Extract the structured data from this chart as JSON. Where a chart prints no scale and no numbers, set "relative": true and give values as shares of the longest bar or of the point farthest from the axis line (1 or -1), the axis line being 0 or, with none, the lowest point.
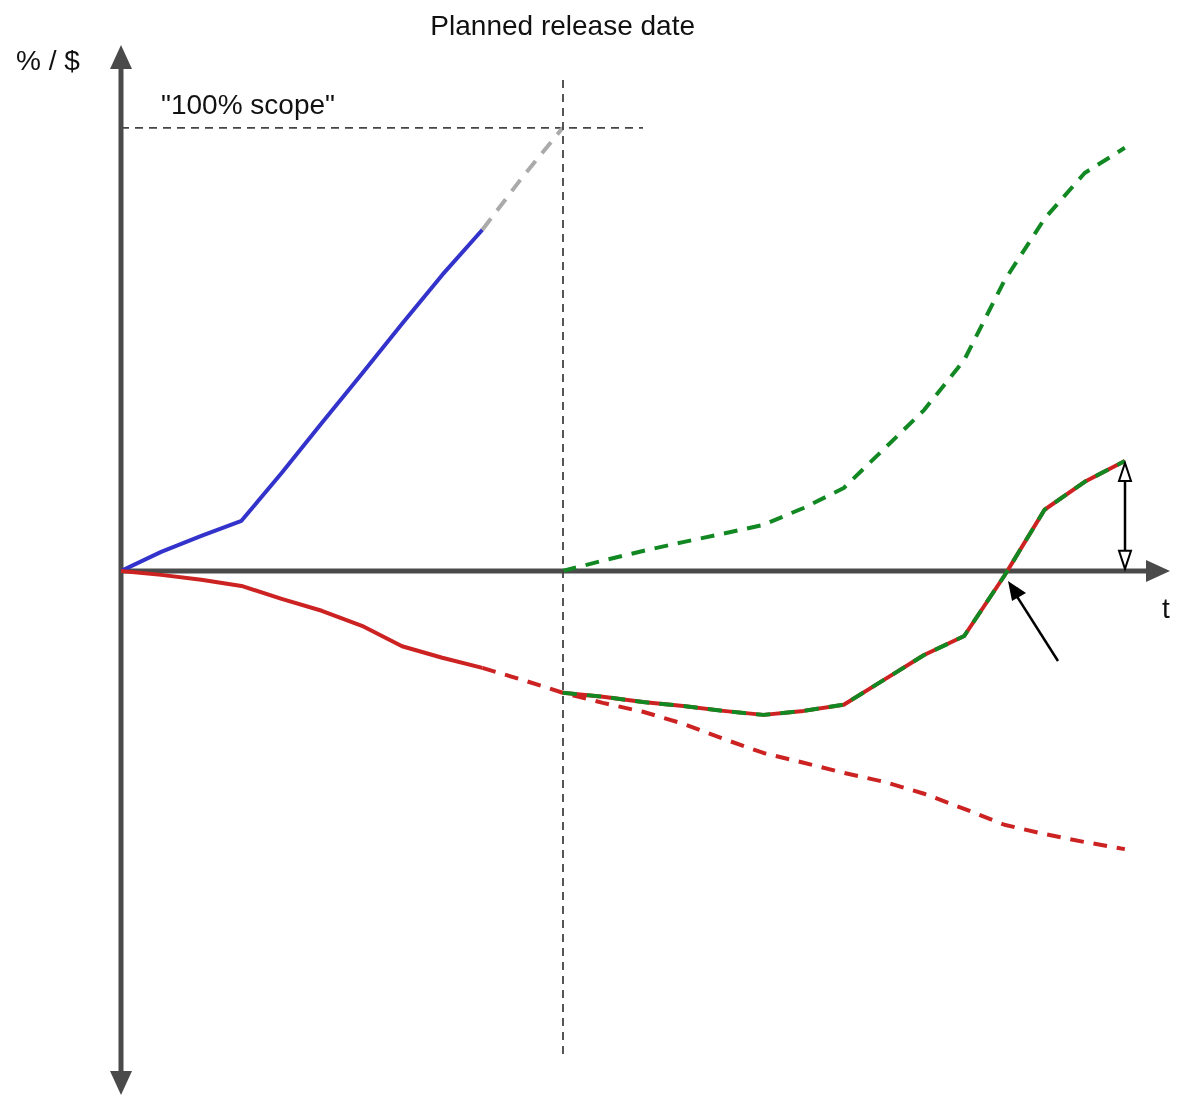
{
  "chart_data": {
    "type": "line",
    "relative": true,
    "xlabel": "t",
    "ylabel": "% / $",
    "legend": false,
    "marker": "none",
    "categories": [
      null,
      null,
      null,
      null,
      null,
      null,
      null,
      null,
      null,
      null,
      null,
      null,
      null,
      null,
      null,
      null,
      null,
      null,
      null,
      null,
      null,
      null,
      null,
      null,
      null,
      null
    ],
    "series": [
      {
        "color": "#3333cc",
        "line_style": "solid",
        "values": [
          0,
          0.043,
          0.079,
          0.113,
          0.221,
          0.334,
          0.445,
          0.558,
          0.668,
          0.77,
          null,
          null,
          null,
          null,
          null,
          null,
          null,
          null,
          null,
          null,
          null,
          null,
          null,
          null,
          null,
          null
        ]
      },
      {
        "color": "#aaaaaa",
        "line_style": "dashed",
        "values": [
          null,
          null,
          null,
          null,
          null,
          null,
          null,
          null,
          null,
          0.77,
          0.889,
          1.0,
          null,
          null,
          null,
          null,
          null,
          null,
          null,
          null,
          null,
          null,
          null,
          null,
          null,
          null
        ]
      },
      {
        "color": "#cc2222",
        "line_style": "solid",
        "values": [
          0,
          -0.009,
          -0.02,
          -0.034,
          -0.063,
          -0.09,
          -0.124,
          -0.17,
          -0.196,
          -0.219,
          null,
          null,
          null,
          null,
          null,
          null,
          null,
          null,
          null,
          null,
          null,
          null,
          null,
          null,
          null,
          null
        ]
      },
      {
        "color": "#cc2222",
        "line_style": "dashed",
        "values": [
          null,
          null,
          null,
          null,
          null,
          null,
          null,
          null,
          null,
          -0.219,
          -0.246,
          -0.275,
          -0.298,
          -0.318,
          -0.345,
          -0.379,
          -0.411,
          -0.433,
          -0.456,
          -0.476,
          -0.503,
          -0.537,
          -0.573,
          -0.594,
          -0.612,
          -0.628
        ]
      },
      {
        "color": "#118822",
        "line_style": "dashed",
        "values": [
          null,
          null,
          null,
          null,
          null,
          null,
          null,
          null,
          null,
          null,
          null,
          0,
          0.023,
          0.045,
          0.065,
          0.084,
          0.104,
          0.142,
          0.187,
          0.275,
          0.363,
          0.476,
          0.655,
          0.795,
          0.898,
          0.955
        ]
      },
      {
        "color": "#cc2222",
        "line_style": "solid",
        "values": [
          null,
          null,
          null,
          null,
          null,
          null,
          null,
          null,
          null,
          null,
          null,
          -0.275,
          -0.284,
          -0.296,
          -0.305,
          -0.316,
          -0.325,
          -0.316,
          -0.302,
          -0.246,
          -0.19,
          -0.147,
          -0.011,
          0.138,
          0.201,
          0.248
        ]
      },
      {
        "color": "#118822",
        "line_style": "dashed",
        "values": [
          null,
          null,
          null,
          null,
          null,
          null,
          null,
          null,
          null,
          null,
          null,
          -0.275,
          -0.284,
          -0.296,
          -0.305,
          -0.316,
          -0.325,
          -0.316,
          -0.302,
          -0.246,
          -0.19,
          -0.147,
          -0.011,
          0.138,
          0.201,
          0.248
        ]
      }
    ],
    "annotations": [
      "Planned release date"
    ],
    "ref_lines": [
      {
        "axis": "y",
        "value": 1.0,
        "label": "\"100% scope\"",
        "color": "#444444",
        "line_style": "dashed"
      }
    ]
  }
}
